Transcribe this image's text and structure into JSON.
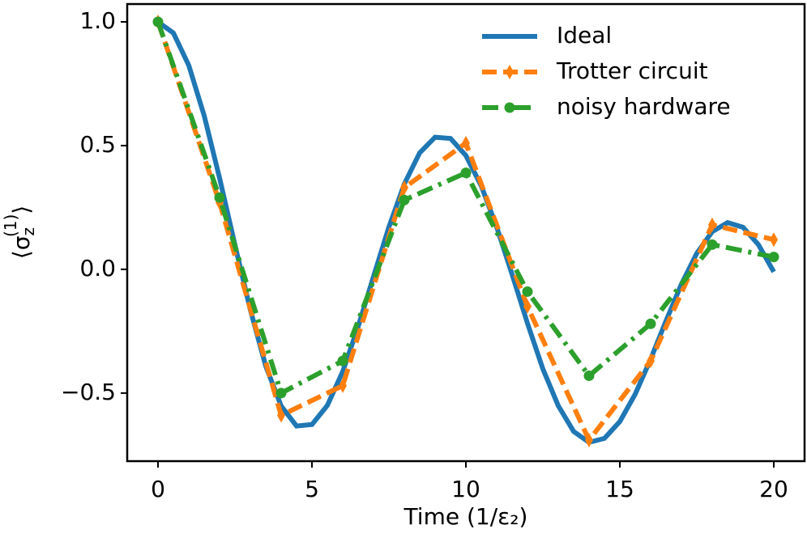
{
  "chart_data": {
    "type": "line",
    "xlabel": "Time (1/ε₂)",
    "ylabel": {
      "open": "⟨σ",
      "sub": "z",
      "sup": "(1)",
      "close": "⟩"
    },
    "xlim": [
      -1,
      21
    ],
    "ylim": [
      -0.775,
      1.072
    ],
    "xticks": [
      0,
      5,
      10,
      15,
      20
    ],
    "yticks": [
      {
        "value": -0.5,
        "label": "−0.5"
      },
      {
        "value": 0,
        "label": "0.0"
      },
      0.5,
      {
        "value": 1,
        "label": "1.0"
      }
    ],
    "legend": "upper right",
    "series": [
      {
        "name": "Ideal",
        "color": "#1f77b4",
        "linestyle": "solid",
        "marker": "none",
        "x": [
          0,
          0.5,
          1,
          1.5,
          2,
          2.5,
          3,
          3.5,
          4,
          4.5,
          5,
          5.5,
          6,
          6.5,
          7,
          7.5,
          8,
          8.5,
          9,
          9.5,
          10,
          10.5,
          11,
          11.5,
          12,
          12.5,
          13,
          13.5,
          14,
          14.5,
          15,
          15.5,
          16,
          16.5,
          17,
          17.5,
          18,
          18.5,
          19,
          19.5,
          20
        ],
        "values": [
          1.0,
          0.955,
          0.824,
          0.621,
          0.369,
          0.098,
          -0.164,
          -0.391,
          -0.552,
          -0.633,
          -0.627,
          -0.55,
          -0.413,
          -0.232,
          -0.029,
          0.171,
          0.345,
          0.471,
          0.534,
          0.529,
          0.46,
          0.337,
          0.171,
          -0.02,
          -0.218,
          -0.402,
          -0.551,
          -0.655,
          -0.699,
          -0.683,
          -0.615,
          -0.504,
          -0.363,
          -0.208,
          -0.06,
          0.065,
          0.152,
          0.189,
          0.17,
          0.1,
          -0.01
        ]
      },
      {
        "name": "Trotter circuit",
        "color": "#ff7f0e",
        "linestyle": "dashed",
        "marker": "thin-diamond",
        "x": [
          0,
          2,
          4,
          6,
          8,
          10,
          12,
          14,
          16,
          18,
          20
        ],
        "values": [
          1.0,
          0.27,
          -0.59,
          -0.47,
          0.33,
          0.51,
          -0.15,
          -0.69,
          -0.37,
          0.18,
          0.12
        ]
      },
      {
        "name": "noisy hardware",
        "color": "#2ca02c",
        "linestyle": "dashdot",
        "marker": "circle",
        "x": [
          0,
          2,
          4,
          6,
          8,
          10,
          12,
          14,
          16,
          18,
          20
        ],
        "values": [
          1.0,
          0.29,
          -0.5,
          -0.37,
          0.28,
          0.39,
          -0.09,
          -0.43,
          -0.22,
          0.1,
          0.05
        ]
      }
    ]
  }
}
